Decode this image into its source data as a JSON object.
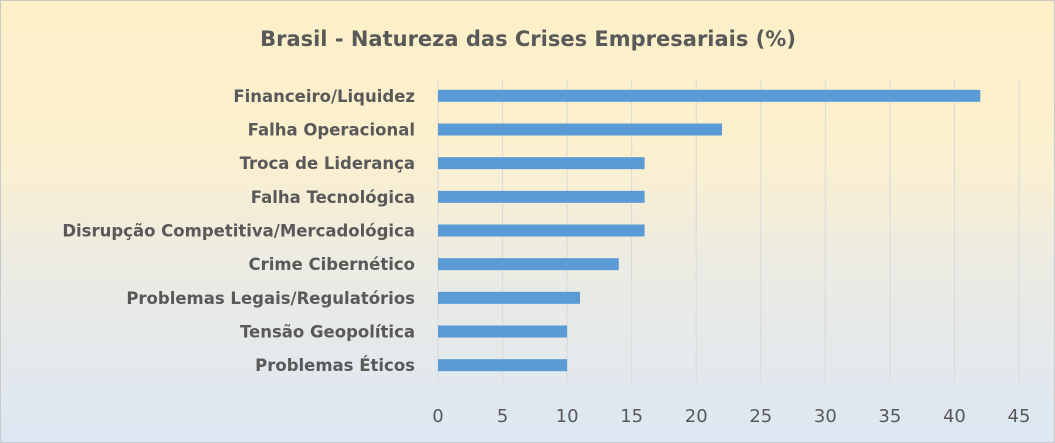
{
  "chart_data": {
    "type": "bar",
    "orientation": "horizontal",
    "title": "Brasil - Natureza das Crises Empresariais (%)",
    "categories": [
      "Financeiro/Liquidez",
      "Falha Operacional",
      "Troca de Liderança",
      "Falha Tecnológica",
      "Disrupção Competitiva/Mercadológica",
      "Crime Cibernético",
      "Problemas Legais/Regulatórios",
      "Tensão Geopolítica",
      "Problemas Éticos"
    ],
    "values": [
      42,
      22,
      16,
      16,
      16,
      14,
      11,
      10,
      10
    ],
    "xlim": [
      0,
      45
    ],
    "xticks": [
      0,
      5,
      10,
      15,
      20,
      25,
      30,
      35,
      40,
      45
    ],
    "grid": "vertical",
    "legend": "none",
    "bar_color": "#5b9bd5"
  }
}
